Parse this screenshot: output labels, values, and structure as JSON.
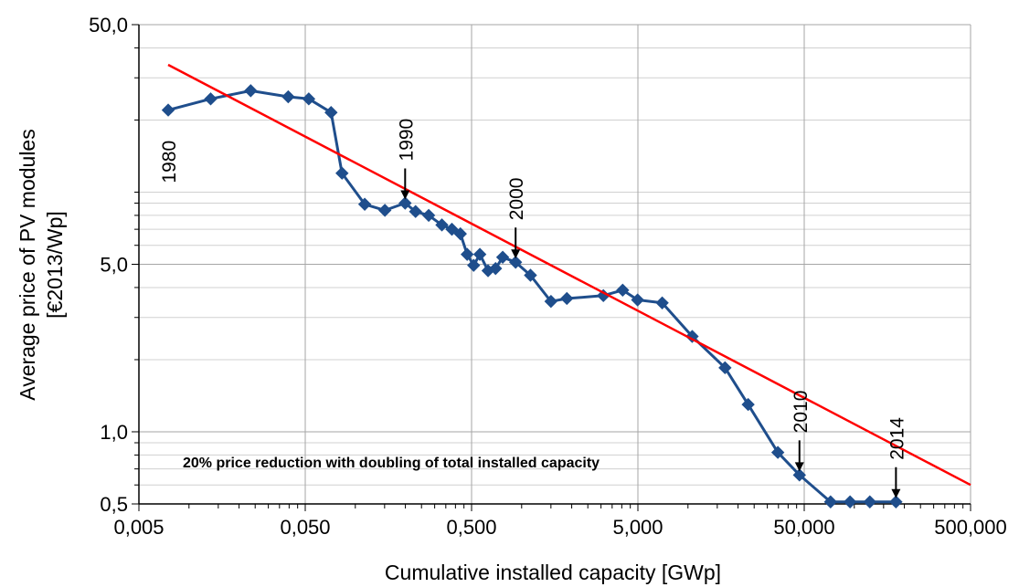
{
  "chart_data": {
    "type": "line",
    "title": "",
    "xlabel": "Cumulative installed capacity [GWp]",
    "ylabel_line1": "Average price of PV modules",
    "ylabel_line2": "[€2013/Wp]",
    "x_scale": "log",
    "y_scale": "log",
    "xlim": [
      0.005,
      500
    ],
    "ylim": [
      0.5,
      50
    ],
    "x_ticks": [
      0.005,
      0.05,
      0.5,
      5,
      50,
      500
    ],
    "x_tick_labels": [
      "0,005",
      "0,050",
      "0,500",
      "5,000",
      "50,000",
      "500,000"
    ],
    "y_ticks": [
      0.5,
      1,
      5,
      50
    ],
    "y_tick_labels": [
      "0,5",
      "1,0",
      "5,0",
      "50,0"
    ],
    "grid": true,
    "series": [
      {
        "color": "#1f4e8c",
        "marker": "diamond",
        "x": [
          0.0075,
          0.0135,
          0.0235,
          0.0395,
          0.0525,
          0.0715,
          0.0832,
          0.1139,
          0.1506,
          0.1993,
          0.2303,
          0.2762,
          0.3315,
          0.3808,
          0.4283,
          0.4705,
          0.5146,
          0.5608,
          0.6281,
          0.697,
          0.7691,
          0.92,
          1.13,
          1.5,
          1.87,
          3.1,
          4.05,
          4.98,
          7.0,
          10.6,
          16.7,
          23.0,
          34.7,
          46.8,
          72.0,
          94.3,
          124.0,
          178.0
        ],
        "y": [
          22.0,
          24.5,
          26.5,
          25.0,
          24.5,
          21.5,
          12.0,
          8.9,
          8.4,
          9.0,
          8.3,
          8.0,
          7.3,
          7.0,
          6.7,
          5.5,
          4.95,
          5.5,
          4.7,
          4.8,
          5.35,
          5.1,
          4.5,
          3.5,
          3.6,
          3.7,
          3.9,
          3.55,
          3.45,
          2.5,
          1.85,
          1.3,
          0.82,
          0.66,
          0.51,
          0.51,
          0.51,
          0.51
        ]
      },
      {
        "color": "#ff0000",
        "marker": "none",
        "x": [
          0.0075,
          500
        ],
        "y": [
          34.0,
          0.6
        ]
      }
    ],
    "annotations": [
      {
        "text": "1980",
        "x": 0.0075
      },
      {
        "text": "1990",
        "x": 0.1993
      },
      {
        "text": "2000",
        "x": 0.92
      },
      {
        "text": "2010",
        "x": 46.8
      },
      {
        "text": "2014",
        "x": 178
      }
    ],
    "note": "20% price reduction with doubling of total installed capacity"
  }
}
